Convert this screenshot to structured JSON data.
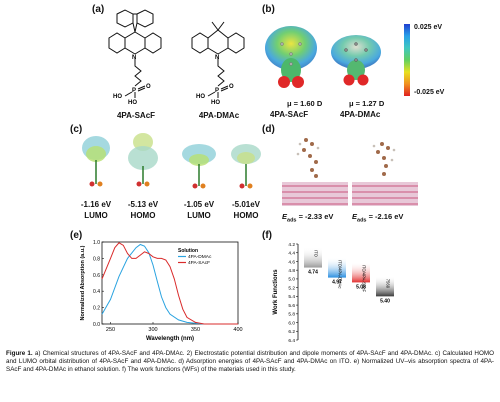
{
  "panels": {
    "a": {
      "letter": "(a)",
      "molecule1": "4PA-SAcF",
      "molecule2": "4PA-DMAc",
      "atom_labels": {
        "ho": "HO",
        "p": "P",
        "o": "O"
      }
    },
    "b": {
      "letter": "(b)",
      "dipole1": "μ = 1.60 D",
      "dipole2": "μ = 1.27 D",
      "name1": "4PA-SAcF",
      "name2": "4PA-DMAc",
      "scale_top": "0.025 eV",
      "scale_bottom": "-0.025 eV"
    },
    "c": {
      "letter": "(c)",
      "orbitals": [
        {
          "energy": "-1.16 eV",
          "label": "LUMO"
        },
        {
          "energy": "-5.13 eV",
          "label": "HOMO"
        },
        {
          "energy": "-1.05 eV",
          "label": "LUMO"
        },
        {
          "energy": "-5.01eV",
          "label": "HOMO"
        }
      ]
    },
    "d": {
      "letter": "(d)",
      "eads_label": "E",
      "eads_sub": "ads",
      "eads1": " = -2.33 eV",
      "eads2": " = -2.16 eV"
    },
    "e": {
      "letter": "(e)"
    },
    "f": {
      "letter": "(f)"
    }
  },
  "chart_data": [
    {
      "type": "line",
      "panel": "e",
      "xlabel": "Wavelength (nm)",
      "ylabel": "Normalized Absorption (a.u.)",
      "xlim": [
        250,
        400
      ],
      "ylim": [
        0,
        1.0
      ],
      "xticks": [
        250,
        300,
        350,
        400
      ],
      "yticks": [
        0.0,
        0.2,
        0.4,
        0.6,
        0.8,
        1.0
      ],
      "legend_title": "Solution",
      "legend_position": "top-right",
      "series": [
        {
          "name": "4PA-DMAc",
          "color": "#2aa3e0",
          "x": [
            240,
            250,
            260,
            270,
            280,
            285,
            290,
            295,
            300,
            305,
            310,
            315,
            320,
            330,
            340,
            350,
            360,
            400
          ],
          "y": [
            0.12,
            0.3,
            0.58,
            0.8,
            0.93,
            0.97,
            0.95,
            0.87,
            0.72,
            0.52,
            0.33,
            0.2,
            0.12,
            0.05,
            0.02,
            0.01,
            0.0,
            0.0
          ]
        },
        {
          "name": "4PA-SAcF",
          "color": "#d92b2b",
          "x": [
            240,
            250,
            255,
            260,
            265,
            270,
            275,
            280,
            285,
            290,
            295,
            300,
            305,
            310,
            315,
            320,
            325,
            330,
            335,
            340,
            350,
            360,
            400
          ],
          "y": [
            0.55,
            0.8,
            0.93,
            0.99,
            0.96,
            0.86,
            0.8,
            0.8,
            0.84,
            0.88,
            0.86,
            0.82,
            0.8,
            0.8,
            0.78,
            0.7,
            0.55,
            0.35,
            0.18,
            0.08,
            0.02,
            0.0,
            0.0
          ]
        }
      ]
    },
    {
      "type": "bar",
      "panel": "f",
      "ylabel": "Work Functions",
      "ylim": [
        4.2,
        6.4
      ],
      "yticks": [
        4.2,
        4.4,
        4.6,
        4.8,
        5.0,
        5.2,
        5.4,
        5.6,
        5.8,
        6.0,
        6.2,
        6.4
      ],
      "bars": [
        {
          "label": "ITO",
          "value": 4.74,
          "value_label": "4.74",
          "color": "#9a9a9a"
        },
        {
          "label": "ITO/4PA-DMAc",
          "value": 4.97,
          "value_label": "4.97",
          "color": "#2b8fe0"
        },
        {
          "label": "ITO/4PA-SAcF",
          "value": 5.08,
          "value_label": "5.08",
          "color": "#e23030"
        },
        {
          "label": "7560",
          "value": 5.4,
          "value_label": "5.40",
          "color": "#3a3a3a"
        }
      ]
    }
  ],
  "caption": {
    "label": "Figure 1.",
    "text": " a) Chemical structures of 4PA-SAcF and 4PA-DMAc. 2) Electrostatic potential distribution and dipole moments of 4PA-SAcF and 4PA-DMAc. c) Calculated HOMO and LUMO orbital distribution of 4PA-SAcF and 4PA-DMAc. d) Adsorption energies of 4PA-SAcF and 4PA-DMAc on ITO. e) Normalized UV–vis absorption spectra of 4PA-SAcF and 4PA-DMAc in ethanol solution. f) The work functions (WFs) of the materials used in this study."
  }
}
